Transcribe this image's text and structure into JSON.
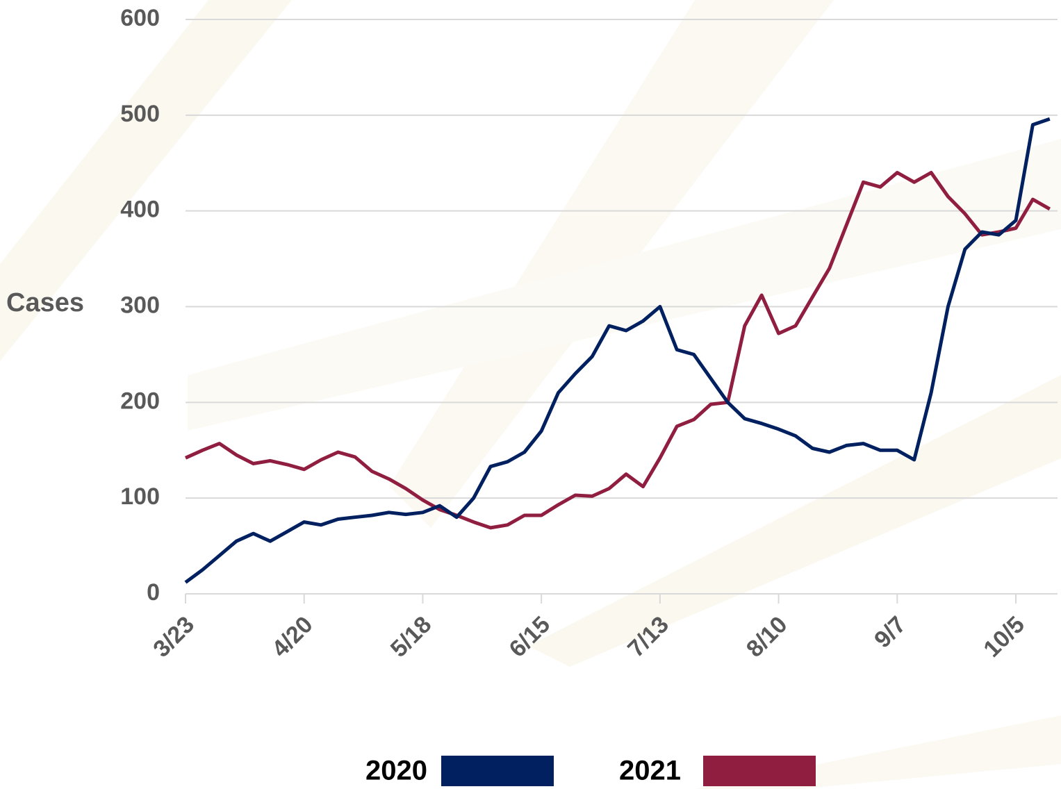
{
  "chart_data": {
    "type": "line",
    "y_label": "Cases",
    "categories": [
      "3/23",
      null,
      null,
      null,
      null,
      null,
      null,
      "4/20",
      null,
      null,
      null,
      null,
      null,
      null,
      "5/18",
      null,
      null,
      null,
      null,
      null,
      null,
      "6/15",
      null,
      null,
      null,
      null,
      null,
      null,
      "7/13",
      null,
      null,
      null,
      null,
      null,
      null,
      "8/10",
      null,
      null,
      null,
      null,
      null,
      null,
      "9/7",
      null,
      null,
      null,
      null,
      null,
      null,
      "10/5",
      null,
      null
    ],
    "series": [
      {
        "name": "2020",
        "color": "#002060",
        "values": [
          12,
          25,
          40,
          55,
          63,
          55,
          65,
          75,
          72,
          78,
          80,
          82,
          85,
          83,
          85,
          92,
          80,
          100,
          133,
          138,
          148,
          170,
          210,
          230,
          248,
          280,
          275,
          285,
          300,
          255,
          250,
          225,
          200,
          183,
          178,
          172,
          165,
          152,
          148,
          155,
          157,
          150,
          150,
          140,
          210,
          300,
          360,
          378,
          375,
          390,
          490,
          496
        ]
      },
      {
        "name": "2021",
        "color": "#901e40",
        "values": [
          142,
          150,
          157,
          145,
          136,
          139,
          135,
          130,
          140,
          148,
          143,
          128,
          120,
          110,
          98,
          88,
          82,
          75,
          69,
          72,
          82,
          82,
          93,
          103,
          102,
          110,
          125,
          112,
          142,
          175,
          182,
          198,
          200,
          280,
          312,
          272,
          280,
          310,
          340,
          385,
          430,
          425,
          440,
          430,
          440,
          415,
          397,
          375,
          378,
          382,
          412,
          402
        ]
      }
    ],
    "ylim": [
      0,
      600
    ],
    "yticks": [
      0,
      100,
      200,
      300,
      400,
      500,
      600
    ],
    "grid": true
  }
}
